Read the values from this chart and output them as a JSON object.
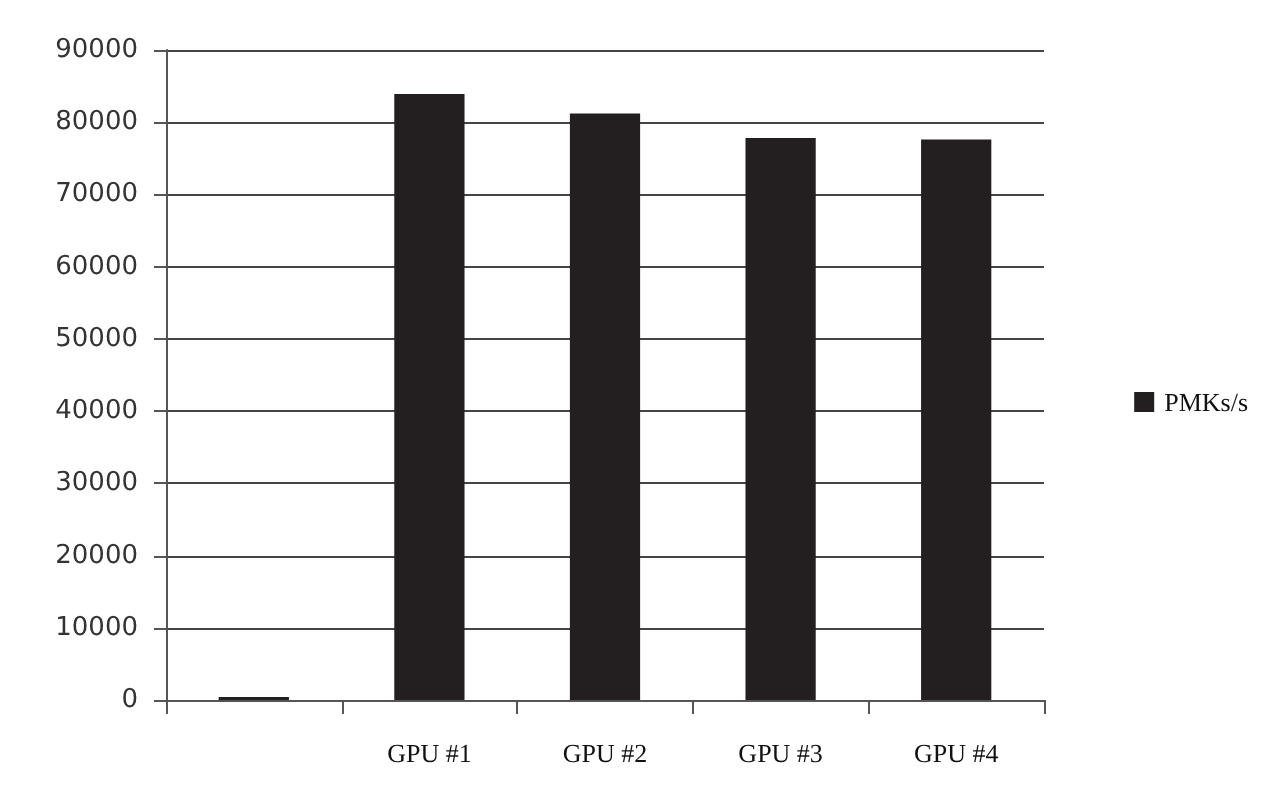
{
  "chart_data": {
    "type": "bar",
    "categories": [
      null,
      "GPU #1",
      "GPU #2",
      "GPU #3",
      "GPU #4"
    ],
    "series": [
      {
        "name": "PMKs/s",
        "color": "#231f20",
        "values": [
          400,
          83900,
          81200,
          77800,
          77600
        ]
      }
    ],
    "ylim": [
      0,
      90000
    ],
    "yticks": [
      0,
      10000,
      20000,
      30000,
      40000,
      50000,
      60000,
      70000,
      80000,
      90000
    ],
    "grid": "y",
    "legend": "right"
  }
}
